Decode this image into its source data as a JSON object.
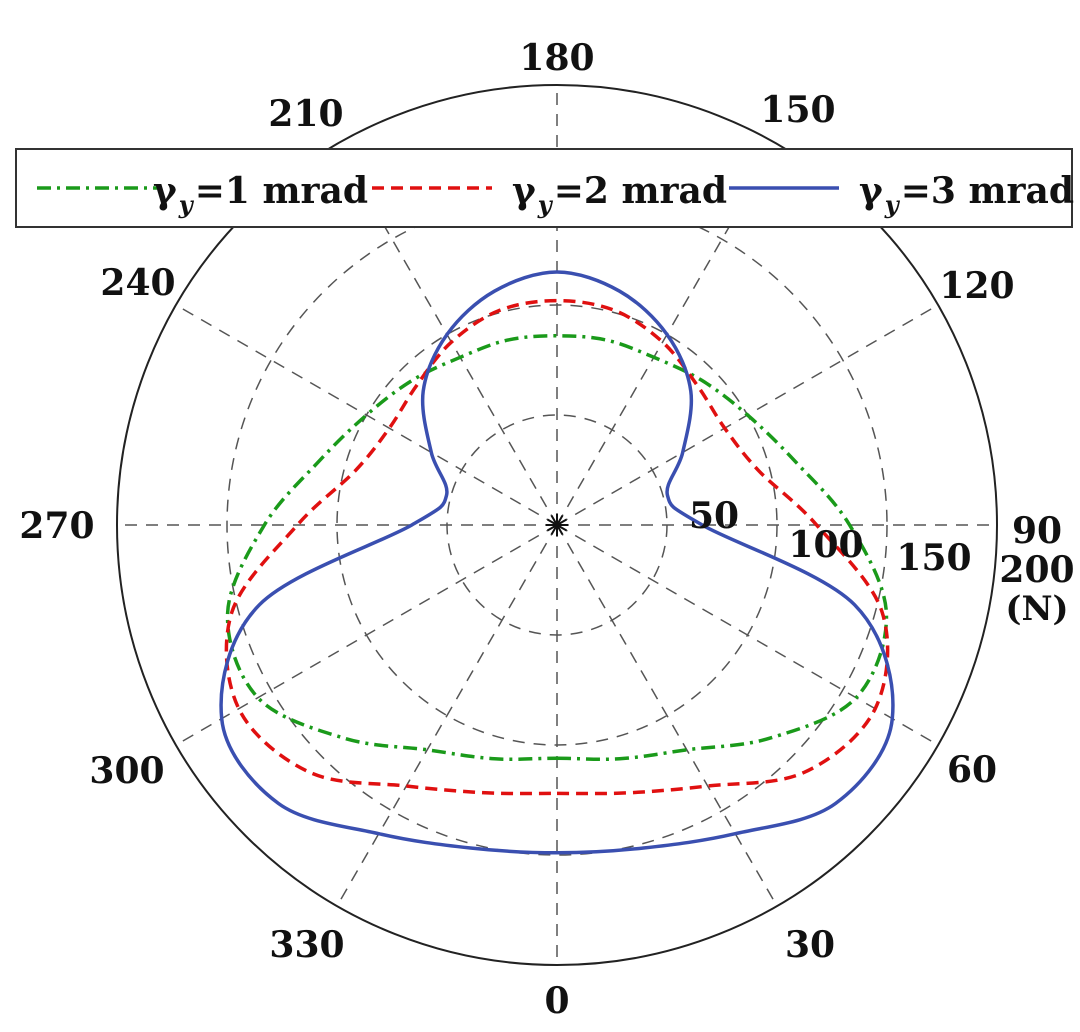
{
  "chart_data": {
    "type": "polar-line",
    "angular_unit": "degrees",
    "radial_unit": "N",
    "angular_ticks": [
      "0",
      "30",
      "60",
      "90",
      "120",
      "150",
      "180",
      "210",
      "240",
      "270",
      "300",
      "330"
    ],
    "radial_ticks": [
      "50",
      "100",
      "150",
      "200"
    ],
    "radial_unit_label": "(N)",
    "rmax": 200,
    "grid": true,
    "legend_placement": "top",
    "angle_direction": "counterclockwise",
    "zero_location": "bottom",
    "series": [
      {
        "name": "γy=1 mrad",
        "symbol": "γ",
        "sub": "y",
        "rest": "=1 mrad",
        "color": "#1a9a1a",
        "style": "dashdot",
        "theta": [
          0,
          15,
          30,
          45,
          60,
          75,
          90,
          105,
          120,
          135,
          150,
          165,
          180,
          195,
          210,
          225,
          240,
          255,
          270,
          285,
          300,
          315,
          330,
          345,
          360
        ],
        "r": [
          106,
          110,
          118,
          137,
          157,
          155,
          133,
          112,
          100,
          93,
          88,
          87,
          86,
          87,
          88,
          93,
          100,
          112,
          133,
          155,
          157,
          137,
          118,
          110,
          106
        ]
      },
      {
        "name": "γy=2 mrad",
        "symbol": "γ",
        "sub": "y",
        "rest": "=2 mrad",
        "color": "#e01010",
        "style": "dashed",
        "theta": [
          0,
          15,
          30,
          45,
          60,
          75,
          90,
          105,
          120,
          135,
          150,
          165,
          180,
          195,
          210,
          225,
          240,
          255,
          270,
          285,
          300,
          315,
          330,
          345,
          360
        ],
        "r": [
          122,
          126,
          137,
          159,
          167,
          153,
          118,
          95,
          88,
          90,
          96,
          101,
          102,
          101,
          96,
          90,
          88,
          95,
          118,
          153,
          167,
          159,
          137,
          126,
          122
        ]
      },
      {
        "name": "γy=3 mrad",
        "symbol": "γ",
        "sub": "y",
        "rest": "=3 mrad",
        "color": "#3a4fb0",
        "style": "solid",
        "theta": [
          0,
          15,
          30,
          45,
          60,
          75,
          90,
          105,
          120,
          135,
          150,
          165,
          180,
          195,
          210,
          225,
          240,
          255,
          270,
          285,
          300,
          315,
          330,
          345,
          360
        ],
        "r": [
          149,
          152,
          162,
          179,
          176,
          140,
          66,
          52,
          66,
          86,
          100,
          110,
          115,
          110,
          100,
          86,
          66,
          52,
          66,
          140,
          176,
          179,
          162,
          152,
          149
        ]
      }
    ]
  }
}
